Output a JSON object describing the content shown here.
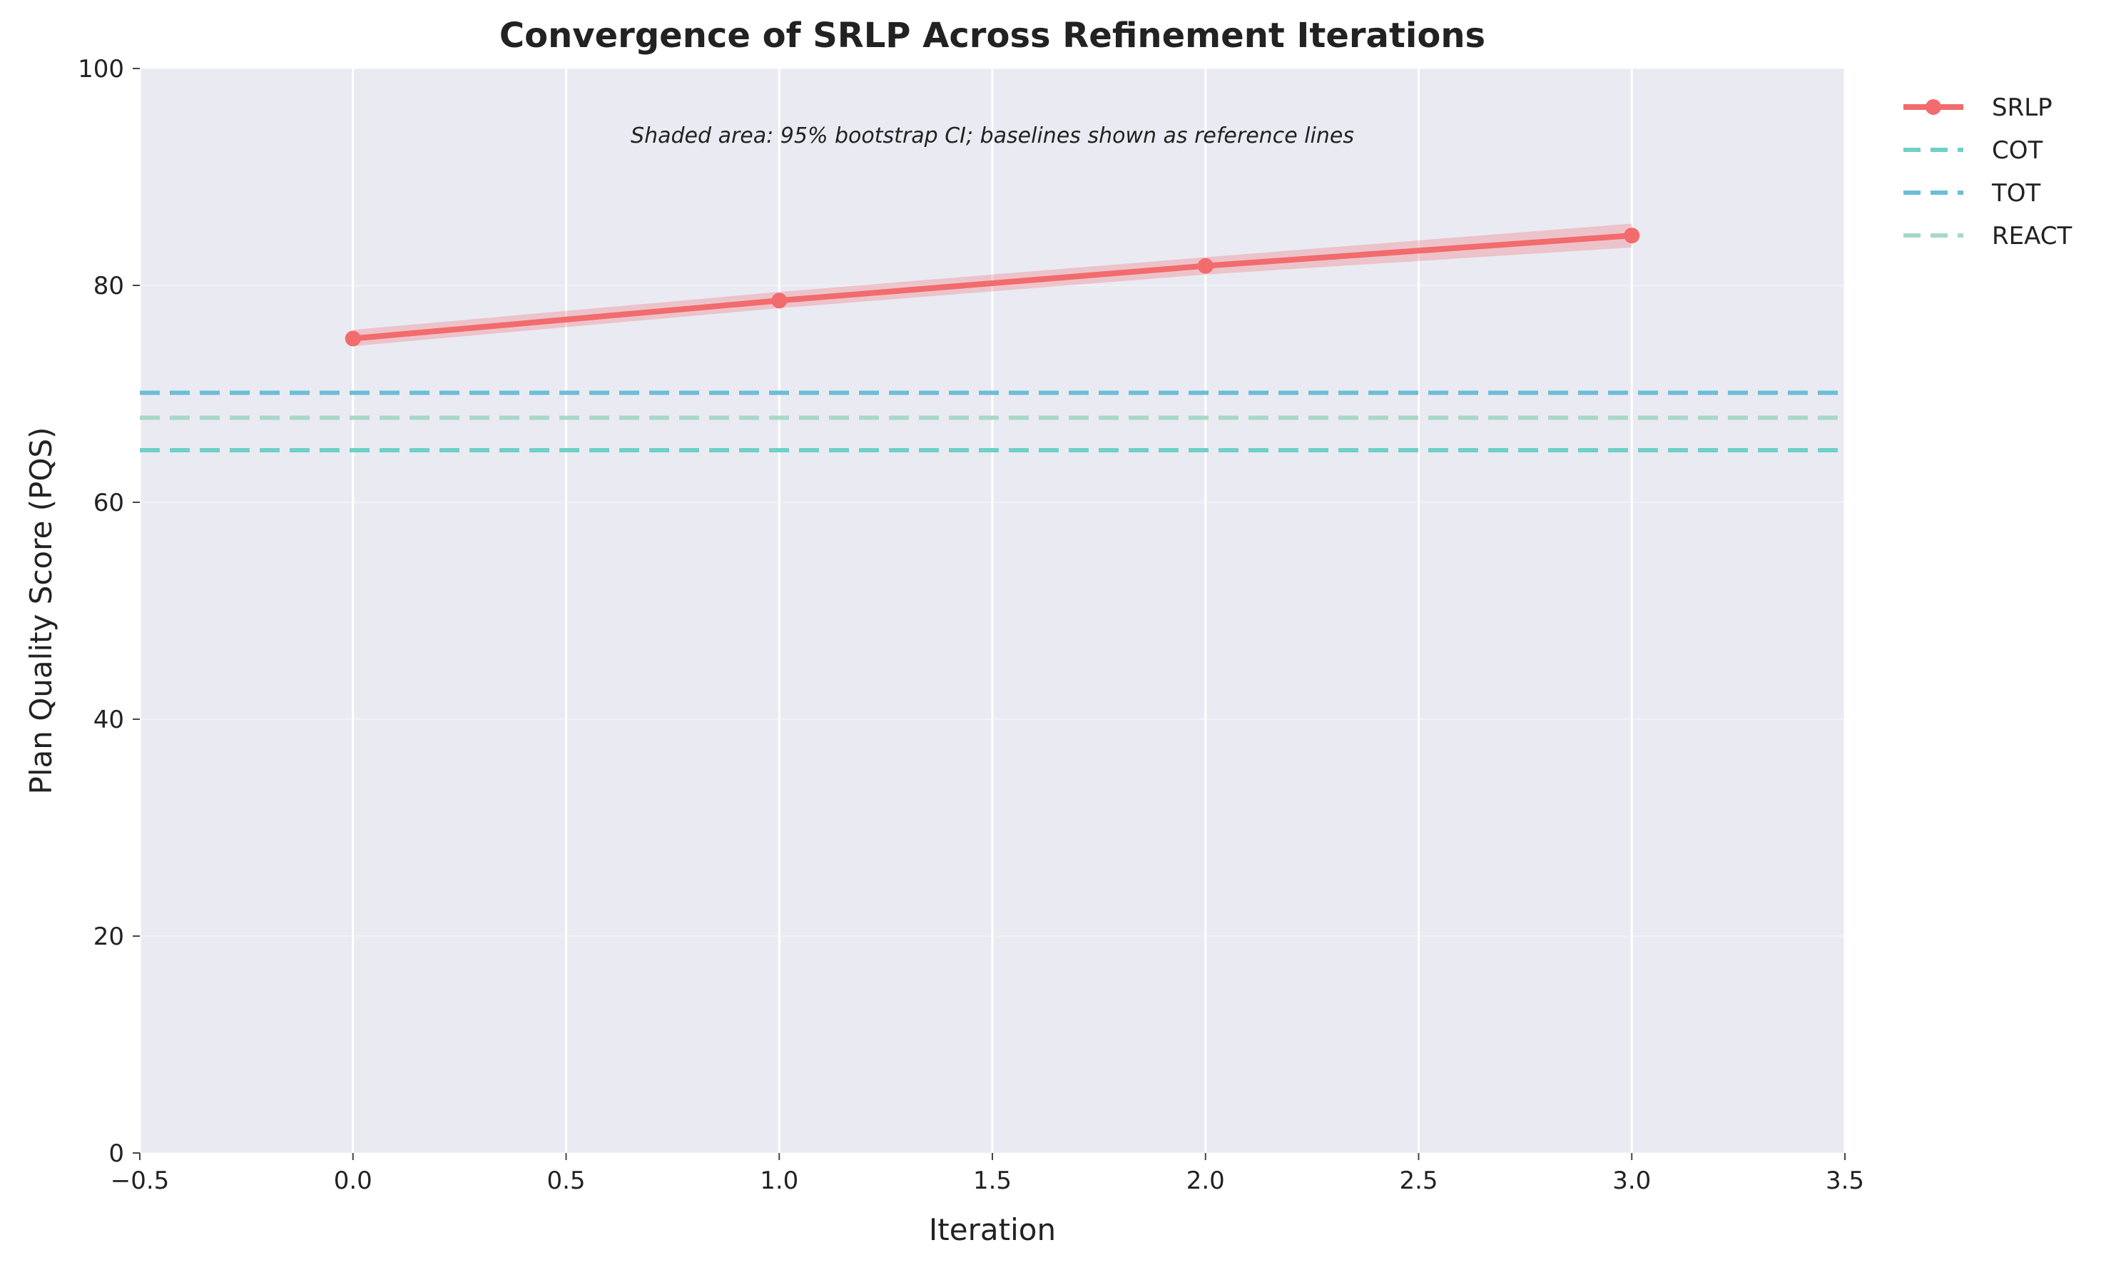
{
  "chart_data": {
    "type": "line",
    "title": "Convergence of SRLP Across Refinement Iterations",
    "xlabel": "Iteration",
    "ylabel": "Plan Quality Score (PQS)",
    "xlim": [
      -0.5,
      3.5
    ],
    "ylim": [
      0,
      100
    ],
    "xticks": [
      "−0.5",
      "0.0",
      "0.5",
      "1.0",
      "1.5",
      "2.0",
      "2.5",
      "3.0",
      "3.5"
    ],
    "xtick_values": [
      -0.5,
      0.0,
      0.5,
      1.0,
      1.5,
      2.0,
      2.5,
      3.0,
      3.5
    ],
    "yticks": [
      "0",
      "20",
      "40",
      "60",
      "80",
      "100"
    ],
    "ytick_values": [
      0,
      20,
      40,
      60,
      80,
      100
    ],
    "grid": true,
    "legend_position": "outside-top-right",
    "annotation": "Shaded area: 95% bootstrap CI; baselines shown as reference lines",
    "series": [
      {
        "name": "SRLP",
        "style": "solid-with-markers",
        "color": "#f26b6d",
        "x": [
          0,
          1,
          2,
          3
        ],
        "y": [
          75.1,
          78.6,
          81.8,
          84.6
        ],
        "ci_lower": [
          74.4,
          77.9,
          81.0,
          83.5
        ],
        "ci_upper": [
          75.9,
          79.4,
          82.6,
          85.7
        ]
      },
      {
        "name": "COT",
        "style": "dashed-reference",
        "color": "#6fd0c6",
        "y": 64.8
      },
      {
        "name": "TOT",
        "style": "dashed-reference",
        "color": "#6cbdd6",
        "y": 70.1
      },
      {
        "name": "REACT",
        "style": "dashed-reference",
        "color": "#a8d8c6",
        "y": 67.8
      }
    ]
  },
  "colors": {
    "plot_background": "#eaeaf2",
    "grid": "#ffffff",
    "ci_fill": "#f26b6d"
  }
}
